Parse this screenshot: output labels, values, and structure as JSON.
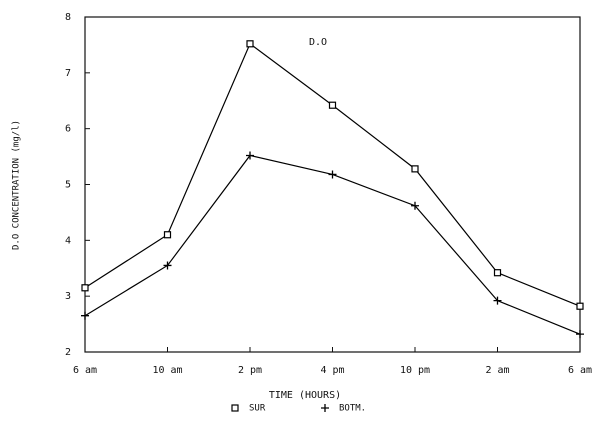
{
  "chart_data": {
    "type": "line",
    "title": "D.O",
    "x_label": "TIME (HOURS)",
    "y_label": "D.O CONCENTRATION (mg/l)",
    "categories": [
      "6 am",
      "10 am",
      "2 pm",
      "4 pm",
      "10 pm",
      "2 am",
      "6 am"
    ],
    "series": [
      {
        "name": "SUR",
        "marker": "square",
        "color": "#000000",
        "values": [
          3.15,
          4.1,
          7.52,
          6.42,
          5.28,
          3.42,
          2.82
        ]
      },
      {
        "name": "BOTM.",
        "marker": "plus",
        "color": "#000000",
        "values": [
          2.65,
          3.55,
          5.52,
          5.18,
          4.62,
          2.92,
          2.32
        ]
      }
    ],
    "ylim": [
      2,
      8
    ],
    "yticks": [
      2,
      3,
      4,
      5,
      6,
      7,
      8
    ],
    "grid": false
  }
}
